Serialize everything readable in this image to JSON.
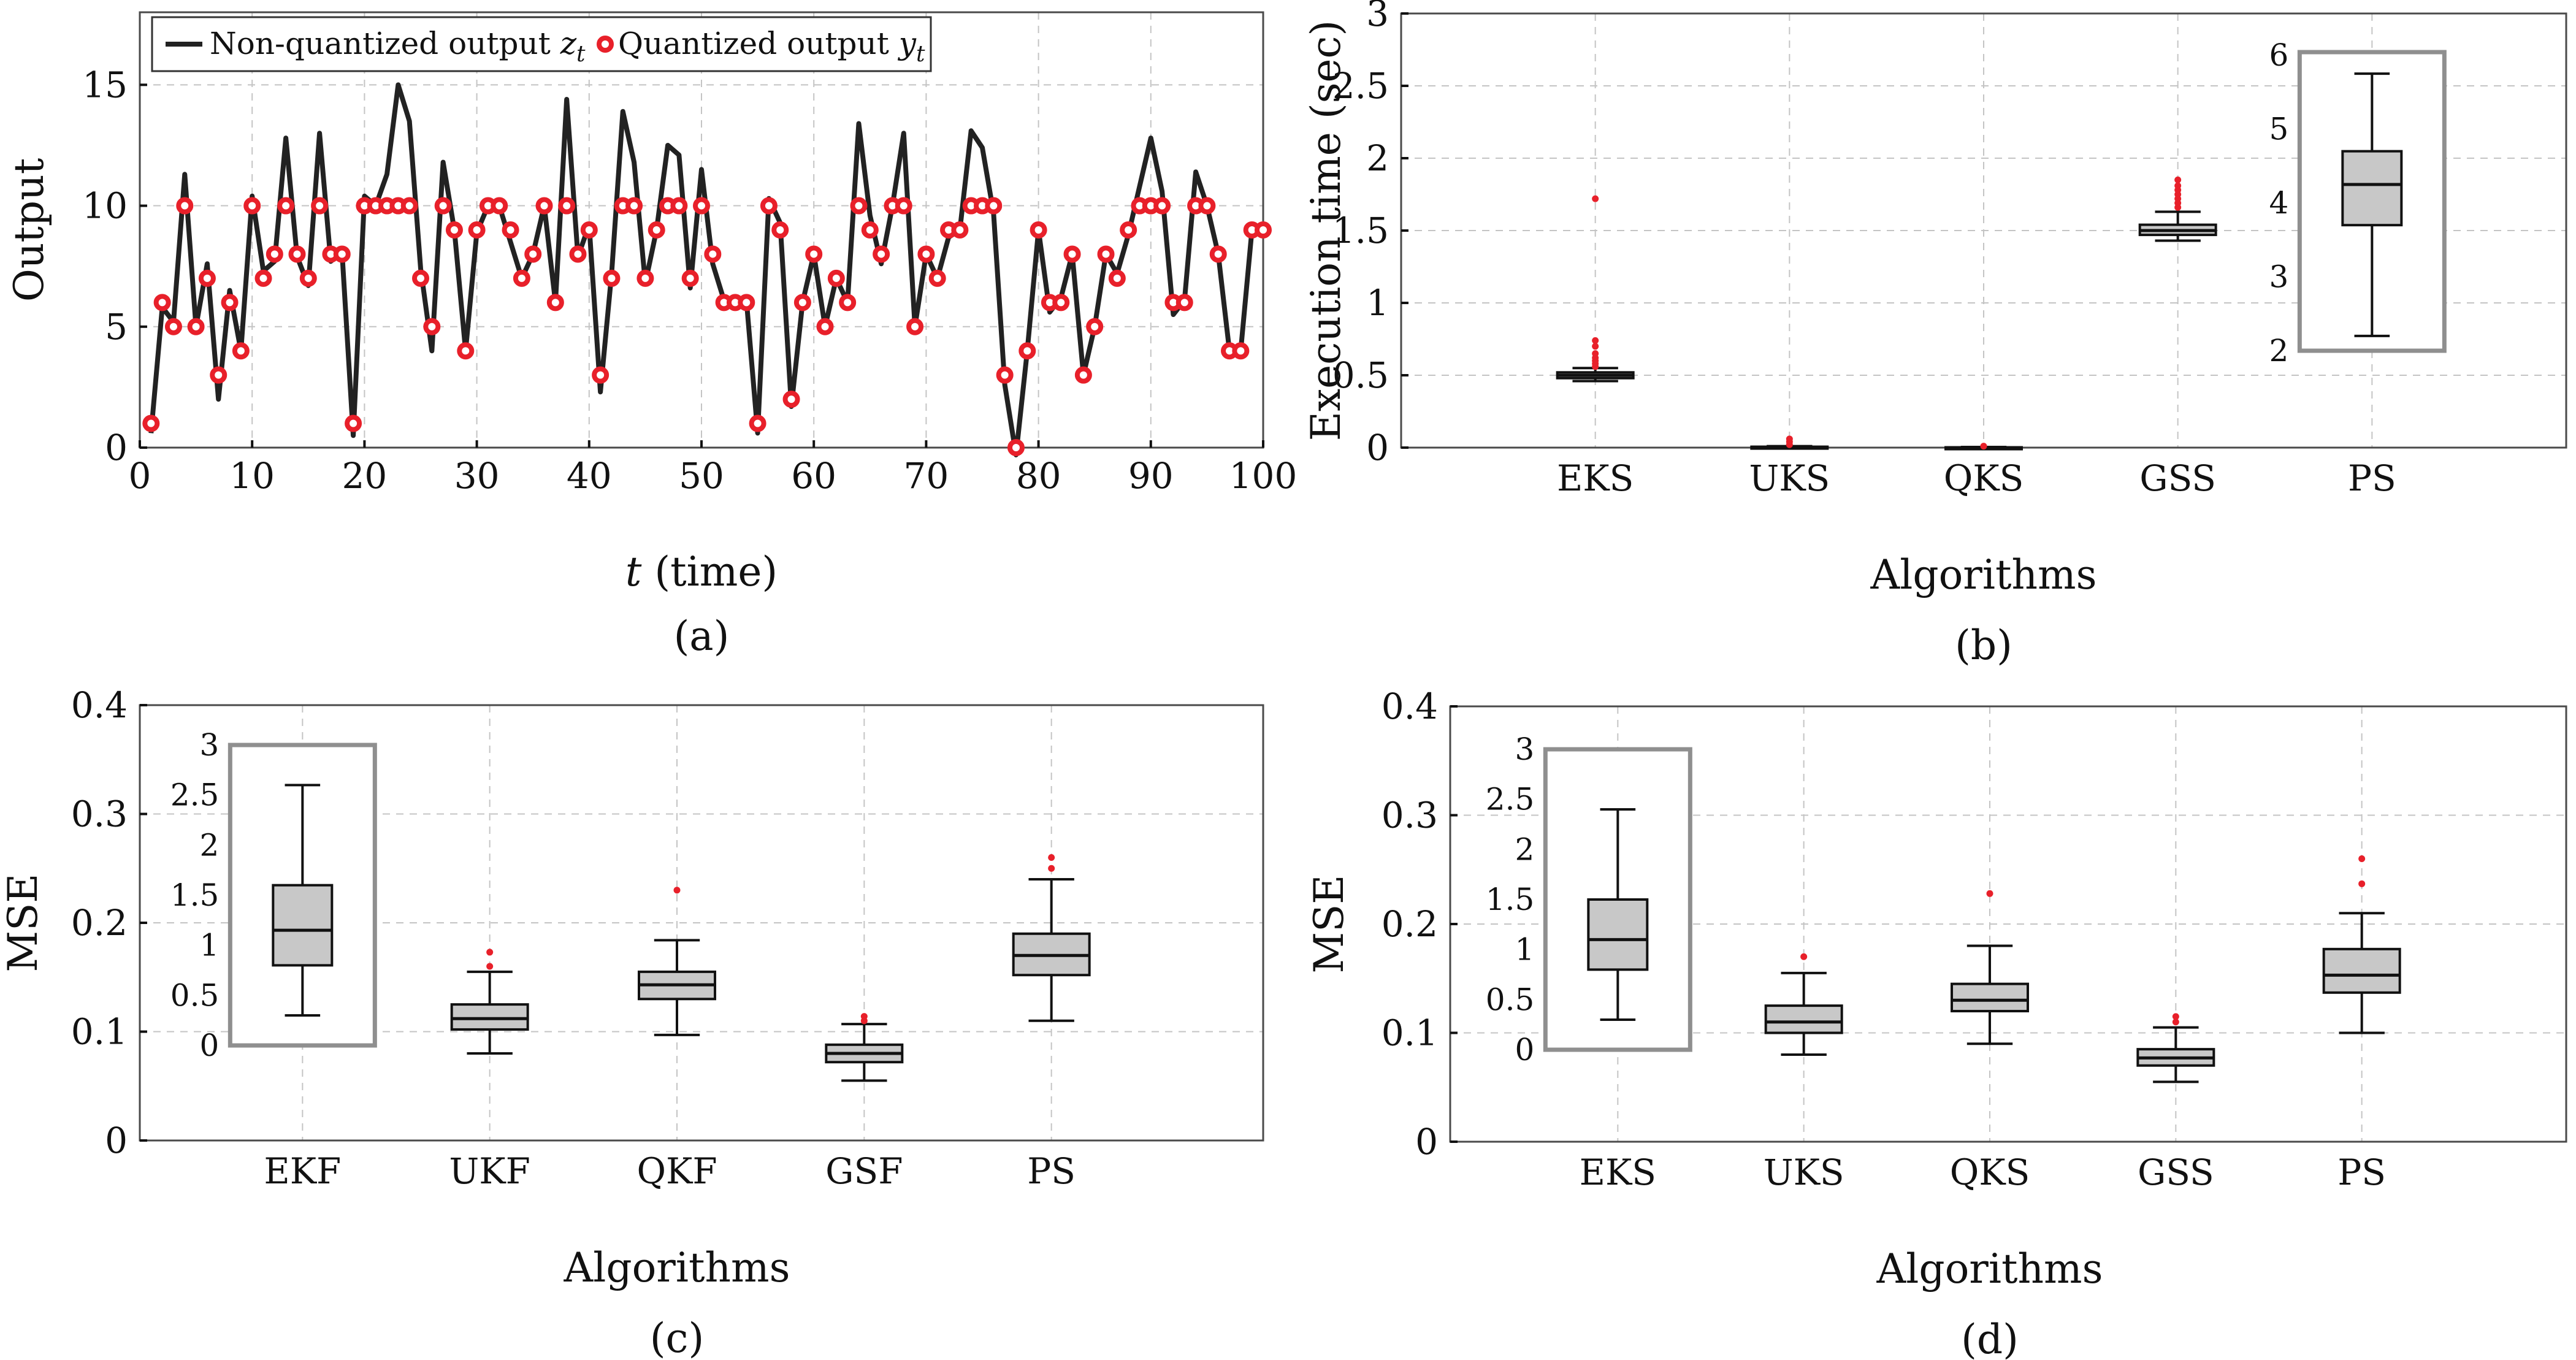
{
  "colors": {
    "line": "#222222",
    "marker": "#e8202a",
    "box_fill": "#c8c8c8",
    "grid": "#c4c4c4",
    "inset_frame": "#8f8f8f"
  },
  "chart_data": [
    {
      "id": "a",
      "type": "line",
      "caption": "(a)",
      "xlabel_var": "t",
      "xlabel_rest": " (time)",
      "ylabel": "Output",
      "xlim": [
        0,
        100
      ],
      "ylim": [
        0,
        18
      ],
      "xticks": [
        0,
        10,
        20,
        30,
        40,
        50,
        60,
        70,
        80,
        90,
        100
      ],
      "yticks": [
        0,
        5,
        10,
        15
      ],
      "legend": [
        {
          "base": "Non-quantized output ",
          "var": "z",
          "sub": "t"
        },
        {
          "base": "Quantized output ",
          "var": "y",
          "sub": "t"
        }
      ],
      "series": [
        {
          "name": "Non-quantized output z_t",
          "x": [
            1,
            2,
            3,
            4,
            5,
            6,
            7,
            8,
            9,
            10,
            11,
            12,
            13,
            14,
            15,
            16,
            17,
            18,
            19,
            20,
            21,
            22,
            23,
            24,
            25,
            26,
            27,
            28,
            29,
            30,
            31,
            32,
            33,
            34,
            35,
            36,
            37,
            38,
            39,
            40,
            41,
            42,
            43,
            44,
            45,
            46,
            47,
            48,
            49,
            50,
            51,
            52,
            53,
            54,
            55,
            56,
            57,
            58,
            59,
            60,
            61,
            62,
            63,
            64,
            65,
            66,
            67,
            68,
            69,
            70,
            71,
            72,
            73,
            74,
            75,
            76,
            77,
            78,
            79,
            80,
            81,
            82,
            83,
            84,
            85,
            86,
            87,
            88,
            89,
            90,
            91,
            92,
            93,
            94,
            95,
            96,
            97,
            98,
            99,
            100
          ],
          "y": [
            0.6,
            5.8,
            5.2,
            11.3,
            5.0,
            7.6,
            2.0,
            6.5,
            4.0,
            10.4,
            7.3,
            7.7,
            12.8,
            7.9,
            6.7,
            13.0,
            7.7,
            8.1,
            0.5,
            10.4,
            10.0,
            11.3,
            15.0,
            13.5,
            7.4,
            4.0,
            11.8,
            9.0,
            4.0,
            8.9,
            10.0,
            10.0,
            8.5,
            7.0,
            8.0,
            10.0,
            6.0,
            14.4,
            7.9,
            9.2,
            2.3,
            7.2,
            13.9,
            11.8,
            6.8,
            9.0,
            12.5,
            12.1,
            6.6,
            11.5,
            7.6,
            6.1,
            6.0,
            6.1,
            0.6,
            10.3,
            9.3,
            1.7,
            6.0,
            8.0,
            5.0,
            7.0,
            6.0,
            13.4,
            9.6,
            7.6,
            10.0,
            13.0,
            5.0,
            8.0,
            7.0,
            8.7,
            9.0,
            13.1,
            12.4,
            9.7,
            2.6,
            -0.3,
            4.0,
            9.0,
            5.6,
            6.2,
            8.0,
            3.0,
            5.0,
            8.0,
            7.2,
            8.8,
            10.8,
            12.8,
            10.6,
            5.5,
            6.1,
            11.4,
            10.0,
            8.0,
            4.0,
            4.0,
            9.0,
            9.0
          ]
        },
        {
          "name": "Quantized output y_t",
          "x": [
            1,
            2,
            3,
            4,
            5,
            6,
            7,
            8,
            9,
            10,
            11,
            12,
            13,
            14,
            15,
            16,
            17,
            18,
            19,
            20,
            21,
            22,
            23,
            24,
            25,
            26,
            27,
            28,
            29,
            30,
            31,
            32,
            33,
            34,
            35,
            36,
            37,
            38,
            39,
            40,
            41,
            42,
            43,
            44,
            45,
            46,
            47,
            48,
            49,
            50,
            51,
            52,
            53,
            54,
            55,
            56,
            57,
            58,
            59,
            60,
            61,
            62,
            63,
            64,
            65,
            66,
            67,
            68,
            69,
            70,
            71,
            72,
            73,
            74,
            75,
            76,
            77,
            78,
            79,
            80,
            81,
            82,
            83,
            84,
            85,
            86,
            87,
            88,
            89,
            90,
            91,
            92,
            93,
            94,
            95,
            96,
            97,
            98,
            99,
            100
          ],
          "y": [
            1,
            6,
            5,
            10,
            5,
            7,
            3,
            6,
            4,
            10,
            7,
            8,
            10,
            8,
            7,
            10,
            8,
            8,
            1,
            10,
            10,
            10,
            10,
            10,
            7,
            5,
            10,
            9,
            4,
            9,
            10,
            10,
            9,
            7,
            8,
            10,
            6,
            10,
            8,
            9,
            3,
            7,
            10,
            10,
            7,
            9,
            10,
            10,
            7,
            10,
            8,
            6,
            6,
            6,
            1,
            10,
            9,
            2,
            6,
            8,
            5,
            7,
            6,
            10,
            9,
            8,
            10,
            10,
            5,
            8,
            7,
            9,
            9,
            10,
            10,
            10,
            3,
            0,
            4,
            9,
            6,
            6,
            8,
            3,
            5,
            8,
            7,
            9,
            10,
            10,
            10,
            6,
            6,
            10,
            10,
            8,
            4,
            4,
            9,
            9
          ]
        }
      ]
    },
    {
      "id": "b",
      "type": "box",
      "caption": "(b)",
      "xlabel": "Algorithms",
      "ylabel": "Execution time (sec)",
      "categories": [
        "EKS",
        "UKS",
        "QKS",
        "GSS",
        "PS"
      ],
      "ylim": [
        0,
        3
      ],
      "yticks": [
        "0",
        "0.5",
        "1",
        "1.5",
        "2",
        "2.5",
        "3"
      ],
      "boxes": [
        {
          "cat": "EKS",
          "wlo": 0.46,
          "q1": 0.48,
          "med": 0.5,
          "q3": 0.52,
          "whi": 0.55,
          "outliers": [
            0.56,
            0.58,
            0.6,
            0.62,
            0.65,
            0.7,
            0.74,
            1.72
          ]
        },
        {
          "cat": "UKS",
          "wlo": 0.0,
          "q1": 0.0,
          "med": 0.003,
          "q3": 0.006,
          "whi": 0.01,
          "outliers": [
            0.02,
            0.04,
            0.06
          ]
        },
        {
          "cat": "QKS",
          "wlo": 0.0,
          "q1": 0.0,
          "med": 0.0,
          "q3": 0.002,
          "whi": 0.004,
          "outliers": [
            0.01
          ]
        },
        {
          "cat": "GSS",
          "wlo": 1.43,
          "q1": 1.47,
          "med": 1.5,
          "q3": 1.54,
          "whi": 1.63,
          "outliers": [
            1.66,
            1.69,
            1.72,
            1.75,
            1.78,
            1.81,
            1.85
          ]
        }
      ],
      "inset": {
        "cat": "PS",
        "ylim": [
          2,
          6
        ],
        "yticks": [
          "2",
          "3",
          "4",
          "5",
          "6"
        ],
        "box": {
          "wlo": 2.2,
          "q1": 3.7,
          "med": 4.25,
          "q3": 4.7,
          "whi": 5.75,
          "outliers": []
        }
      }
    },
    {
      "id": "c",
      "type": "box",
      "caption": "(c)",
      "xlabel": "Algorithms",
      "ylabel": "MSE",
      "categories": [
        "EKF",
        "UKF",
        "QKF",
        "GSF",
        "PS"
      ],
      "ylim": [
        0,
        0.4
      ],
      "yticks": [
        "0",
        "0.1",
        "0.2",
        "0.3",
        "0.4"
      ],
      "boxes": [
        {
          "cat": "UKF",
          "wlo": 0.08,
          "q1": 0.102,
          "med": 0.112,
          "q3": 0.125,
          "whi": 0.155,
          "outliers": [
            0.16,
            0.173
          ]
        },
        {
          "cat": "QKF",
          "wlo": 0.097,
          "q1": 0.13,
          "med": 0.143,
          "q3": 0.155,
          "whi": 0.184,
          "outliers": [
            0.23
          ]
        },
        {
          "cat": "GSF",
          "wlo": 0.055,
          "q1": 0.072,
          "med": 0.08,
          "q3": 0.088,
          "whi": 0.107,
          "outliers": [
            0.11,
            0.114
          ]
        },
        {
          "cat": "PS",
          "wlo": 0.11,
          "q1": 0.152,
          "med": 0.17,
          "q3": 0.19,
          "whi": 0.24,
          "outliers": [
            0.25,
            0.26
          ]
        }
      ],
      "inset": {
        "cat": "EKF",
        "ylim": [
          0,
          3
        ],
        "yticks": [
          "0",
          "0.5",
          "1",
          "1.5",
          "2",
          "2.5",
          "3"
        ],
        "box": {
          "wlo": 0.3,
          "q1": 0.8,
          "med": 1.15,
          "q3": 1.6,
          "whi": 2.6,
          "outliers": []
        }
      }
    },
    {
      "id": "d",
      "type": "box",
      "caption": "(d)",
      "xlabel": "Algorithms",
      "ylabel": "MSE",
      "categories": [
        "EKS",
        "UKS",
        "QKS",
        "GSS",
        "PS"
      ],
      "ylim": [
        0,
        0.4
      ],
      "yticks": [
        "0",
        "0.1",
        "0.2",
        "0.3",
        "0.4"
      ],
      "boxes": [
        {
          "cat": "UKS",
          "wlo": 0.08,
          "q1": 0.1,
          "med": 0.11,
          "q3": 0.125,
          "whi": 0.155,
          "outliers": [
            0.17
          ]
        },
        {
          "cat": "QKS",
          "wlo": 0.09,
          "q1": 0.12,
          "med": 0.13,
          "q3": 0.145,
          "whi": 0.18,
          "outliers": [
            0.228
          ]
        },
        {
          "cat": "GSS",
          "wlo": 0.055,
          "q1": 0.07,
          "med": 0.077,
          "q3": 0.085,
          "whi": 0.105,
          "outliers": [
            0.11,
            0.115
          ]
        },
        {
          "cat": "PS",
          "wlo": 0.1,
          "q1": 0.137,
          "med": 0.153,
          "q3": 0.177,
          "whi": 0.21,
          "outliers": [
            0.237,
            0.26
          ]
        }
      ],
      "inset": {
        "cat": "EKS",
        "ylim": [
          0,
          3
        ],
        "yticks": [
          "0",
          "0.5",
          "1",
          "1.5",
          "2",
          "2.5",
          "3"
        ],
        "box": {
          "wlo": 0.3,
          "q1": 0.8,
          "med": 1.1,
          "q3": 1.5,
          "whi": 2.4,
          "outliers": []
        }
      }
    }
  ]
}
